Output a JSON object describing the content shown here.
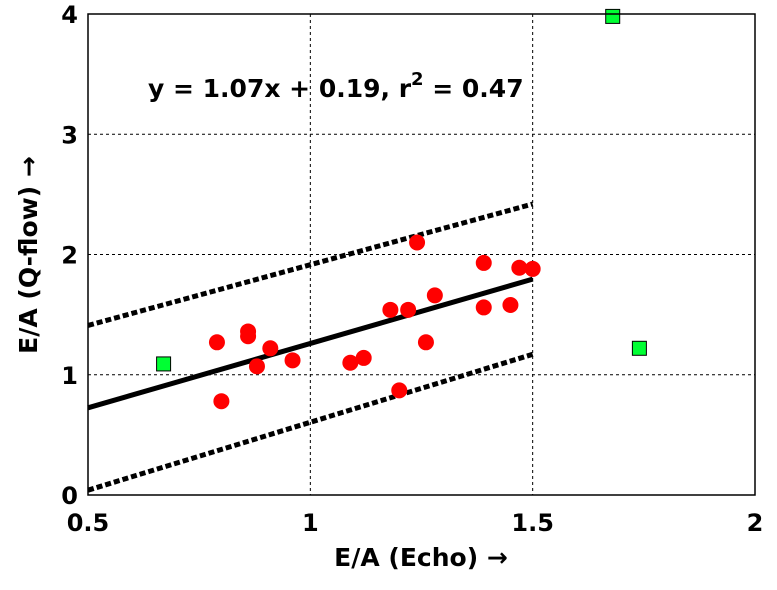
{
  "chart_data": {
    "type": "scatter",
    "xlabel": "E/A (Echo) →",
    "ylabel": "E/A (Q-flow) →",
    "xlim": [
      0.5,
      2
    ],
    "ylim": [
      0,
      4
    ],
    "x_ticks": [
      0.5,
      1,
      1.5,
      2
    ],
    "y_ticks": [
      0,
      1,
      2,
      3,
      4
    ],
    "x_tick_labels": [
      "0.5",
      "1",
      "1.5",
      "2"
    ],
    "y_tick_labels": [
      "0",
      "1",
      "2",
      "3",
      "4"
    ],
    "grid": true,
    "annotation": {
      "equation": "y = 1.07x + 0.19, r",
      "sup": "2",
      "tail": " = 0.47"
    },
    "fit": {
      "slope": 1.07,
      "intercept": 0.19,
      "x_range": [
        0.5,
        1.5
      ]
    },
    "confidence_band": {
      "upper": [
        [
          0.5,
          1.41
        ],
        [
          1.5,
          2.42
        ]
      ],
      "lower": [
        [
          0.5,
          0.04
        ],
        [
          1.5,
          1.17
        ]
      ]
    },
    "series": [
      {
        "marker": "circle",
        "color": "#ff0000",
        "points": [
          [
            0.79,
            1.27
          ],
          [
            0.8,
            0.78
          ],
          [
            0.86,
            1.36
          ],
          [
            0.86,
            1.32
          ],
          [
            0.88,
            1.07
          ],
          [
            0.91,
            1.22
          ],
          [
            0.96,
            1.12
          ],
          [
            1.09,
            1.1
          ],
          [
            1.12,
            1.14
          ],
          [
            1.18,
            1.54
          ],
          [
            1.2,
            0.87
          ],
          [
            1.22,
            1.54
          ],
          [
            1.24,
            2.1
          ],
          [
            1.26,
            1.27
          ],
          [
            1.28,
            1.66
          ],
          [
            1.39,
            1.93
          ],
          [
            1.39,
            1.56
          ],
          [
            1.45,
            1.58
          ],
          [
            1.47,
            1.89
          ],
          [
            1.5,
            1.88
          ]
        ]
      },
      {
        "marker": "square",
        "color": "#00ff33",
        "points": [
          [
            0.67,
            1.09
          ],
          [
            1.68,
            3.98
          ],
          [
            1.74,
            1.22
          ]
        ]
      }
    ]
  }
}
